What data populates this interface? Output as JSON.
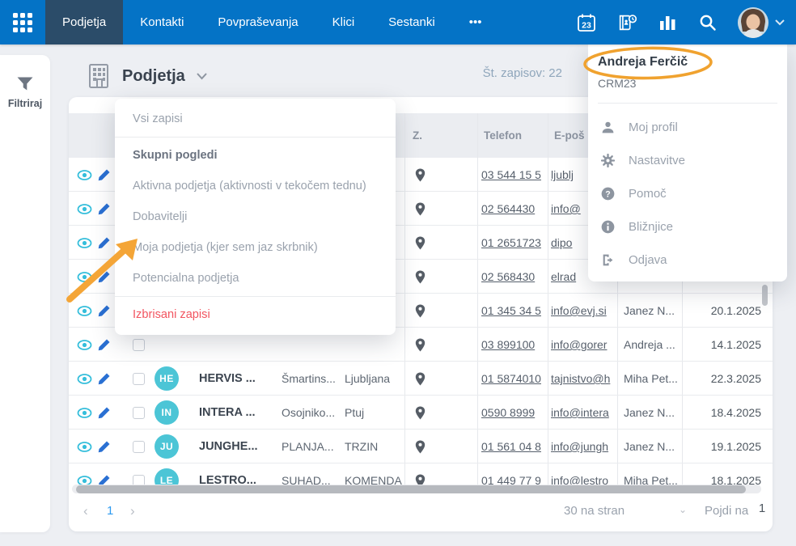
{
  "colors": {
    "nav_blue": "#0473c6",
    "active_tab": "#2b4c69",
    "cyan": "#3cc0da",
    "link_blue": "#2e9bf0",
    "danger_red": "#f25560",
    "annotation_orange": "#f3a233"
  },
  "nav": {
    "tabs": [
      {
        "label": "Podjetja",
        "active": true
      },
      {
        "label": "Kontakti",
        "active": false
      },
      {
        "label": "Povpraševanja",
        "active": false
      },
      {
        "label": "Klici",
        "active": false
      },
      {
        "label": "Sestanki",
        "active": false
      },
      {
        "label": "•••",
        "active": false
      }
    ],
    "calendar_day": "23",
    "icons": [
      "apps-grid-icon",
      "calendar-icon",
      "contacts-clock-icon",
      "bar-chart-icon",
      "search-icon",
      "avatar",
      "chevron-down-icon"
    ]
  },
  "sidebar": {
    "filter_label": "Filtriraj"
  },
  "page_header": {
    "title": "Podjetja",
    "records_label": "Št. zapisov: 22"
  },
  "views_menu": {
    "items": [
      {
        "label": "Vsi zapisi",
        "type": "item",
        "divider_after": true
      },
      {
        "label": "Skupni pogledi",
        "type": "header"
      },
      {
        "label": "Aktivna podjetja (aktivnosti v tekočem tednu)",
        "type": "item"
      },
      {
        "label": "Dobavitelji",
        "type": "item"
      },
      {
        "label": "Moja podjetja (kjer sem jaz skrbnik)",
        "type": "item"
      },
      {
        "label": "Potencialna podjetja",
        "type": "item",
        "divider_after": true
      },
      {
        "label": "Izbrisani zapisi",
        "type": "danger"
      }
    ]
  },
  "user_menu": {
    "name": "Andreja Ferčič",
    "org": "CRM23",
    "items": [
      {
        "icon": "user",
        "label": "Moj profil"
      },
      {
        "icon": "gear",
        "label": "Nastavitve"
      },
      {
        "icon": "help",
        "label": "Pomoč"
      },
      {
        "icon": "info",
        "label": "Bližnjice"
      },
      {
        "icon": "logout",
        "label": "Odjava"
      }
    ]
  },
  "table": {
    "headers": {
      "location": "Z.",
      "phone": "Telefon",
      "email": "E-poš"
    },
    "rows": [
      {
        "initials": "",
        "name": "",
        "address": "",
        "city": "",
        "phone": "03 544 15 5",
        "email": "ljublj",
        "owner": "",
        "date": ""
      },
      {
        "initials": "",
        "name": "",
        "address": "",
        "city": "...",
        "phone": "02 564430",
        "email": "info@",
        "owner": "",
        "date": ""
      },
      {
        "initials": "",
        "name": "",
        "address": "",
        "city": "",
        "phone": "01 2651723",
        "email": "dipo",
        "owner": "",
        "date": ""
      },
      {
        "initials": "",
        "name": "",
        "address": "",
        "city": "...",
        "phone": "02 568430",
        "email": "elrad",
        "owner": "",
        "date": ""
      },
      {
        "initials": "",
        "name": "",
        "address": "",
        "city": "..",
        "phone": "01 345 34 5",
        "email": "info@evj.si",
        "owner": "Janez N...",
        "date": "20.1.2025"
      },
      {
        "initials": "",
        "name": "",
        "address": "",
        "city": "",
        "phone": "03 899100",
        "email": "info@gorer",
        "owner": "Andreja ...",
        "date": "14.1.2025"
      },
      {
        "initials": "HE",
        "name": "HERVIS ...",
        "address": "Šmartins...",
        "city": "Ljubljana",
        "phone": "01 5874010",
        "email": "tajnistvo@h",
        "owner": "Miha Pet...",
        "date": "22.3.2025"
      },
      {
        "initials": "IN",
        "name": "INTERA ...",
        "address": "Osojniko...",
        "city": "Ptuj",
        "phone": "0590 8999",
        "email": "info@intera",
        "owner": "Janez N...",
        "date": "18.4.2025"
      },
      {
        "initials": "JU",
        "name": "JUNGHE...",
        "address": "PLANJA...",
        "city": "TRZIN",
        "phone": "01 561 04 8",
        "email": "info@jungh",
        "owner": "Janez N...",
        "date": "19.1.2025"
      },
      {
        "initials": "LE",
        "name": "LESTRO...",
        "address": "SUHAD...",
        "city": "KOMENDA",
        "phone": "01 449 77 9",
        "email": "info@lestro",
        "owner": "Miha Pet...",
        "date": "18.1.2025"
      }
    ]
  },
  "pagination": {
    "page": "1",
    "prev": "‹",
    "next": "›",
    "per_page_label": "30 na stran",
    "goto_label": "Pojdi na",
    "goto_value": "1"
  }
}
